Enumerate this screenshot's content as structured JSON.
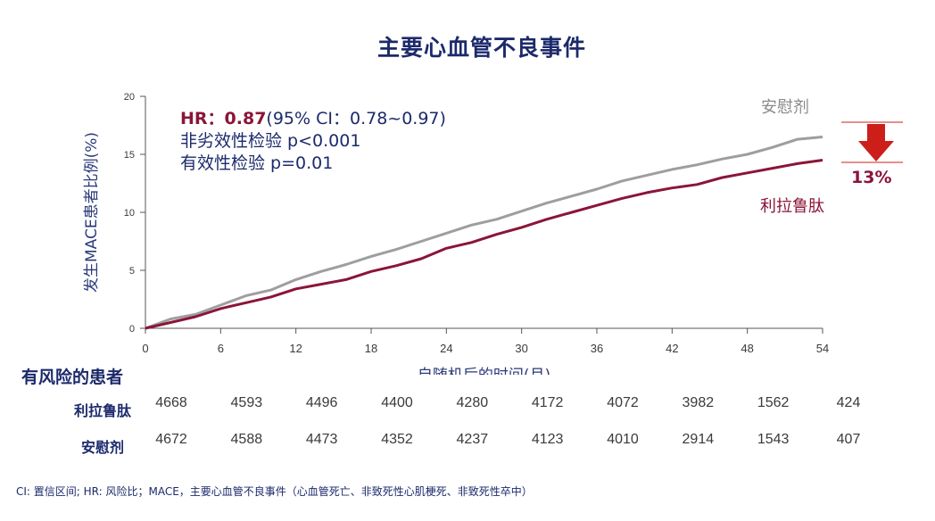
{
  "title": "主要心血管不良事件",
  "chart_data": {
    "type": "line",
    "xlabel": "自随机后的时间(月)",
    "ylabel": "发生MACE患者比例(%)",
    "xlim": [
      0,
      54
    ],
    "ylim": [
      0,
      20
    ],
    "xticks": [
      0,
      6,
      12,
      18,
      24,
      30,
      36,
      42,
      48,
      54
    ],
    "yticks": [
      0,
      5,
      10,
      15,
      20
    ],
    "grid": false,
    "series": [
      {
        "name": "安慰剂",
        "color": "#9e9e9e",
        "x": [
          0,
          2,
          4,
          6,
          8,
          10,
          12,
          14,
          16,
          18,
          20,
          22,
          24,
          26,
          28,
          30,
          32,
          34,
          36,
          38,
          40,
          42,
          44,
          46,
          48,
          50,
          52,
          54
        ],
        "y": [
          0,
          0.8,
          1.2,
          2.0,
          2.8,
          3.3,
          4.2,
          4.9,
          5.5,
          6.2,
          6.8,
          7.5,
          8.2,
          8.9,
          9.4,
          10.1,
          10.8,
          11.4,
          12.0,
          12.7,
          13.2,
          13.7,
          14.1,
          14.6,
          15.0,
          15.6,
          16.3,
          16.5
        ]
      },
      {
        "name": "利拉鲁肽",
        "color": "#8b1538",
        "x": [
          0,
          2,
          4,
          6,
          8,
          10,
          12,
          14,
          16,
          18,
          20,
          22,
          24,
          26,
          28,
          30,
          32,
          34,
          36,
          38,
          40,
          42,
          44,
          46,
          48,
          50,
          52,
          54
        ],
        "y": [
          0,
          0.5,
          1.0,
          1.7,
          2.2,
          2.7,
          3.4,
          3.8,
          4.2,
          4.9,
          5.4,
          6.0,
          6.9,
          7.4,
          8.1,
          8.7,
          9.4,
          10.0,
          10.6,
          11.2,
          11.7,
          12.1,
          12.4,
          13.0,
          13.4,
          13.8,
          14.2,
          14.5
        ]
      }
    ],
    "annotations": {
      "hr_label": "HR：0.87",
      "hr_ci": "(95% CI：0.78~0.97)",
      "noninferiority": "非劣效性检验 p<0.001",
      "superiority": "有效性检验 p=0.01",
      "reduction": "13%",
      "reduction_color": "#cc1f1a"
    }
  },
  "risk_table": {
    "title": "有风险的患者",
    "rows": [
      {
        "label": "利拉鲁肽",
        "values": [
          "4668",
          "4593",
          "4496",
          "4400",
          "4280",
          "4172",
          "4072",
          "3982",
          "1562",
          "424"
        ]
      },
      {
        "label": "安慰剂",
        "values": [
          "4672",
          "4588",
          "4473",
          "4352",
          "4237",
          "4123",
          "4010",
          "2914",
          "1543",
          "407"
        ]
      }
    ]
  },
  "footnote": "CI: 置信区间; HR: 风险比；MACE，主要心血管不良事件（心血管死亡、非致死性心肌梗死、非致死性卒中）"
}
